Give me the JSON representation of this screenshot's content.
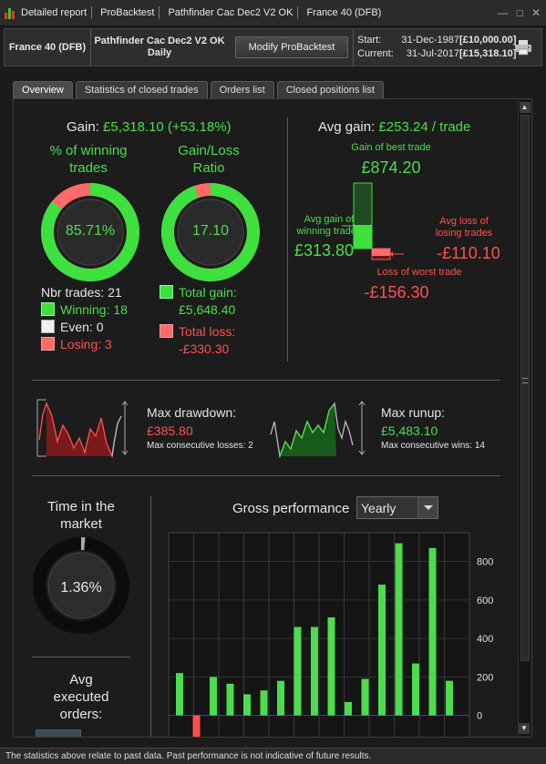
{
  "titlebar": {
    "items": [
      "Detailed report",
      "ProBacktest",
      "Pathfinder Cac Dec2 V2 OK",
      "France 40 (DFB)"
    ],
    "buttons": [
      "—",
      "□",
      "✕"
    ]
  },
  "header": {
    "instrument": "France 40 (DFB)",
    "system_name": "Pathfinder Cac Dec2 V2 OK",
    "system_period": "Daily",
    "modify_button": "Modify ProBacktest",
    "start_label": "Start:",
    "start_date": "31-Dec-1987",
    "start_amount": "[£10,000.00]",
    "current_label": "Current:",
    "current_date": "31-Jul-2017",
    "current_amount": "[£15,318.10]"
  },
  "tabs": [
    "Overview",
    "Statistics of closed trades",
    "Orders list",
    "Closed positions list"
  ],
  "overview": {
    "gain_label": "Gain:",
    "gain_value": "£5,318.10 (+53.18%)",
    "win_title_1": "% of winning",
    "win_title_2": "trades",
    "win_pct": "85.71%",
    "win_fraction": 0.8571,
    "ratio_title_1": "Gain/Loss",
    "ratio_title_2": "Ratio",
    "ratio_value": "17.10",
    "ratio_fraction": 0.9448,
    "nbr_trades": "Nbr trades: 21",
    "winning": "Winning: 18",
    "even": "Even: 0",
    "losing": "Losing: 3",
    "total_gain_label": "Total gain:",
    "total_gain": "£5,648.40",
    "total_loss_label": "Total loss:",
    "total_loss": "-£330.30",
    "avg_gain_label": "Avg gain:",
    "avg_gain_value": "£253.24 / trade",
    "best_trade_label": "Gain of best trade",
    "best_trade": "£874.20",
    "avg_win_label_1": "Avg gain of",
    "avg_win_label_2": "winning trades",
    "avg_win": "£313.80",
    "avg_loss_label_1": "Avg loss of",
    "avg_loss_label_2": "losing trades",
    "avg_loss": "-£110.10",
    "worst_trade_label": "Loss of worst trade",
    "worst_trade": "-£156.30",
    "max_drawdown_label": "Max drawdown:",
    "max_drawdown": "£385.80",
    "max_consec_losses": "Max consecutive losses: 2",
    "max_runup_label": "Max runup:",
    "max_runup": "£5,483.10",
    "max_consec_wins": "Max consecutive wins: 14",
    "time_market_1": "Time in the",
    "time_market_2": "market",
    "time_market_value": "1.36%",
    "time_market_fraction": 0.0136,
    "avg_exec_1": "Avg",
    "avg_exec_2": "executed",
    "avg_exec_3": "orders:",
    "gross_perf_label": "Gross performance",
    "period_select": "Yearly"
  },
  "colors": {
    "gain": "#4ddc4d",
    "loss": "#ff5050",
    "panel": "#1c1c1c"
  },
  "chart_data": {
    "type": "bar",
    "values": [
      220,
      -110,
      200,
      165,
      110,
      130,
      180,
      460,
      460,
      510,
      70,
      190,
      680,
      895,
      270,
      870,
      180
    ],
    "ylim": [
      -120,
      950
    ],
    "yticks": [
      "800",
      "600",
      "400",
      "200",
      "0"
    ],
    "grid": true
  },
  "footer": "The statistics above relate to past data. Past performance is not indicative of future results."
}
